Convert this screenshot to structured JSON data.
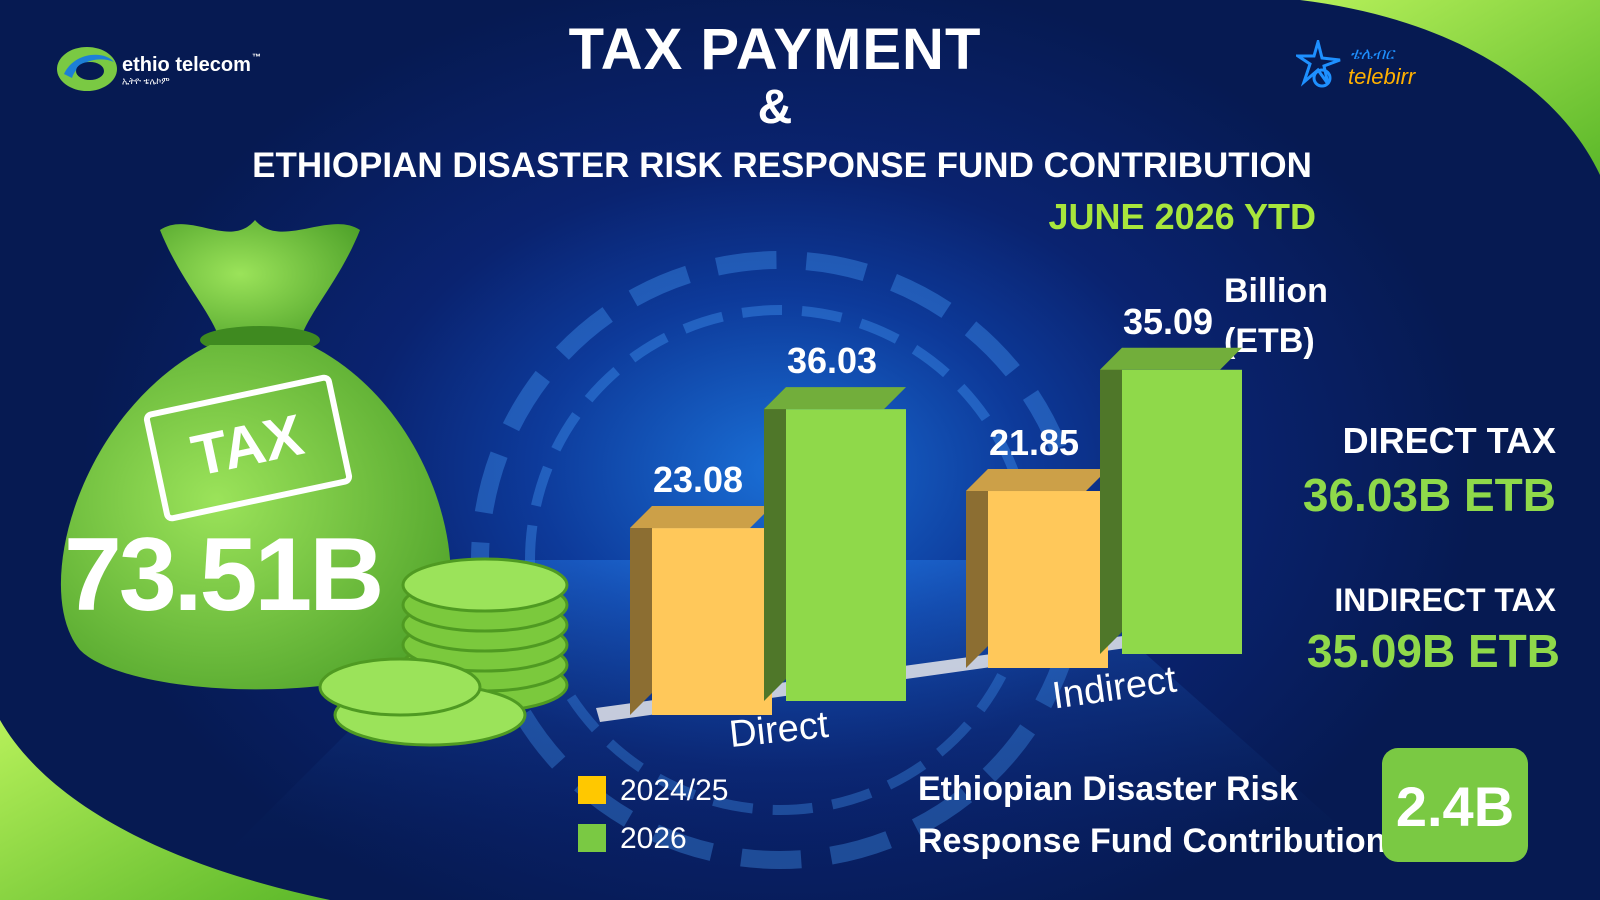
{
  "header": {
    "title": "TAX PAYMENT",
    "ampersand": "&",
    "subtitle": "ETHIOPIAN DISASTER RISK RESPONSE FUND CONTRIBUTION",
    "period": "JUNE 2026 YTD"
  },
  "logos": {
    "left_name": "ethio telecom",
    "left_tm": "™",
    "left_sub": "ኢትዮ ቴሌኮም",
    "right_name": "telebirr",
    "right_sub": "ቴሌብር"
  },
  "bag": {
    "label": "TAX",
    "total": "73.51B"
  },
  "unit": {
    "line1": "Billion",
    "line2": "(ETB)"
  },
  "chart_data": {
    "type": "bar",
    "categories": [
      "Direct",
      "Indirect"
    ],
    "series": [
      {
        "name": "2024/25",
        "values": [
          23.08,
          21.85
        ],
        "color": "#ffc85a"
      },
      {
        "name": "2026",
        "values": [
          36.03,
          35.09
        ],
        "color": "#8fd94a"
      }
    ],
    "value_labels": [
      [
        "23.08",
        "21.85"
      ],
      [
        "36.03",
        "35.09"
      ]
    ],
    "ylim": [
      0,
      40
    ],
    "grid": false,
    "legend": "bottom-left"
  },
  "summary": {
    "direct_label": "DIRECT TAX",
    "direct_value": "36.03B ETB",
    "indirect_label": "INDIRECT TAX",
    "indirect_value": "35.09B ETB"
  },
  "fund": {
    "line1": "Ethiopian Disaster Risk",
    "line2": "Response Fund Contribution",
    "value": "2.4B"
  },
  "colors": {
    "background": "#0a2370",
    "accent_green": "#8fd94a",
    "bar_old": "#ffc85a",
    "bar_new": "#8fd94a",
    "fund_badge": "#7ac943"
  }
}
